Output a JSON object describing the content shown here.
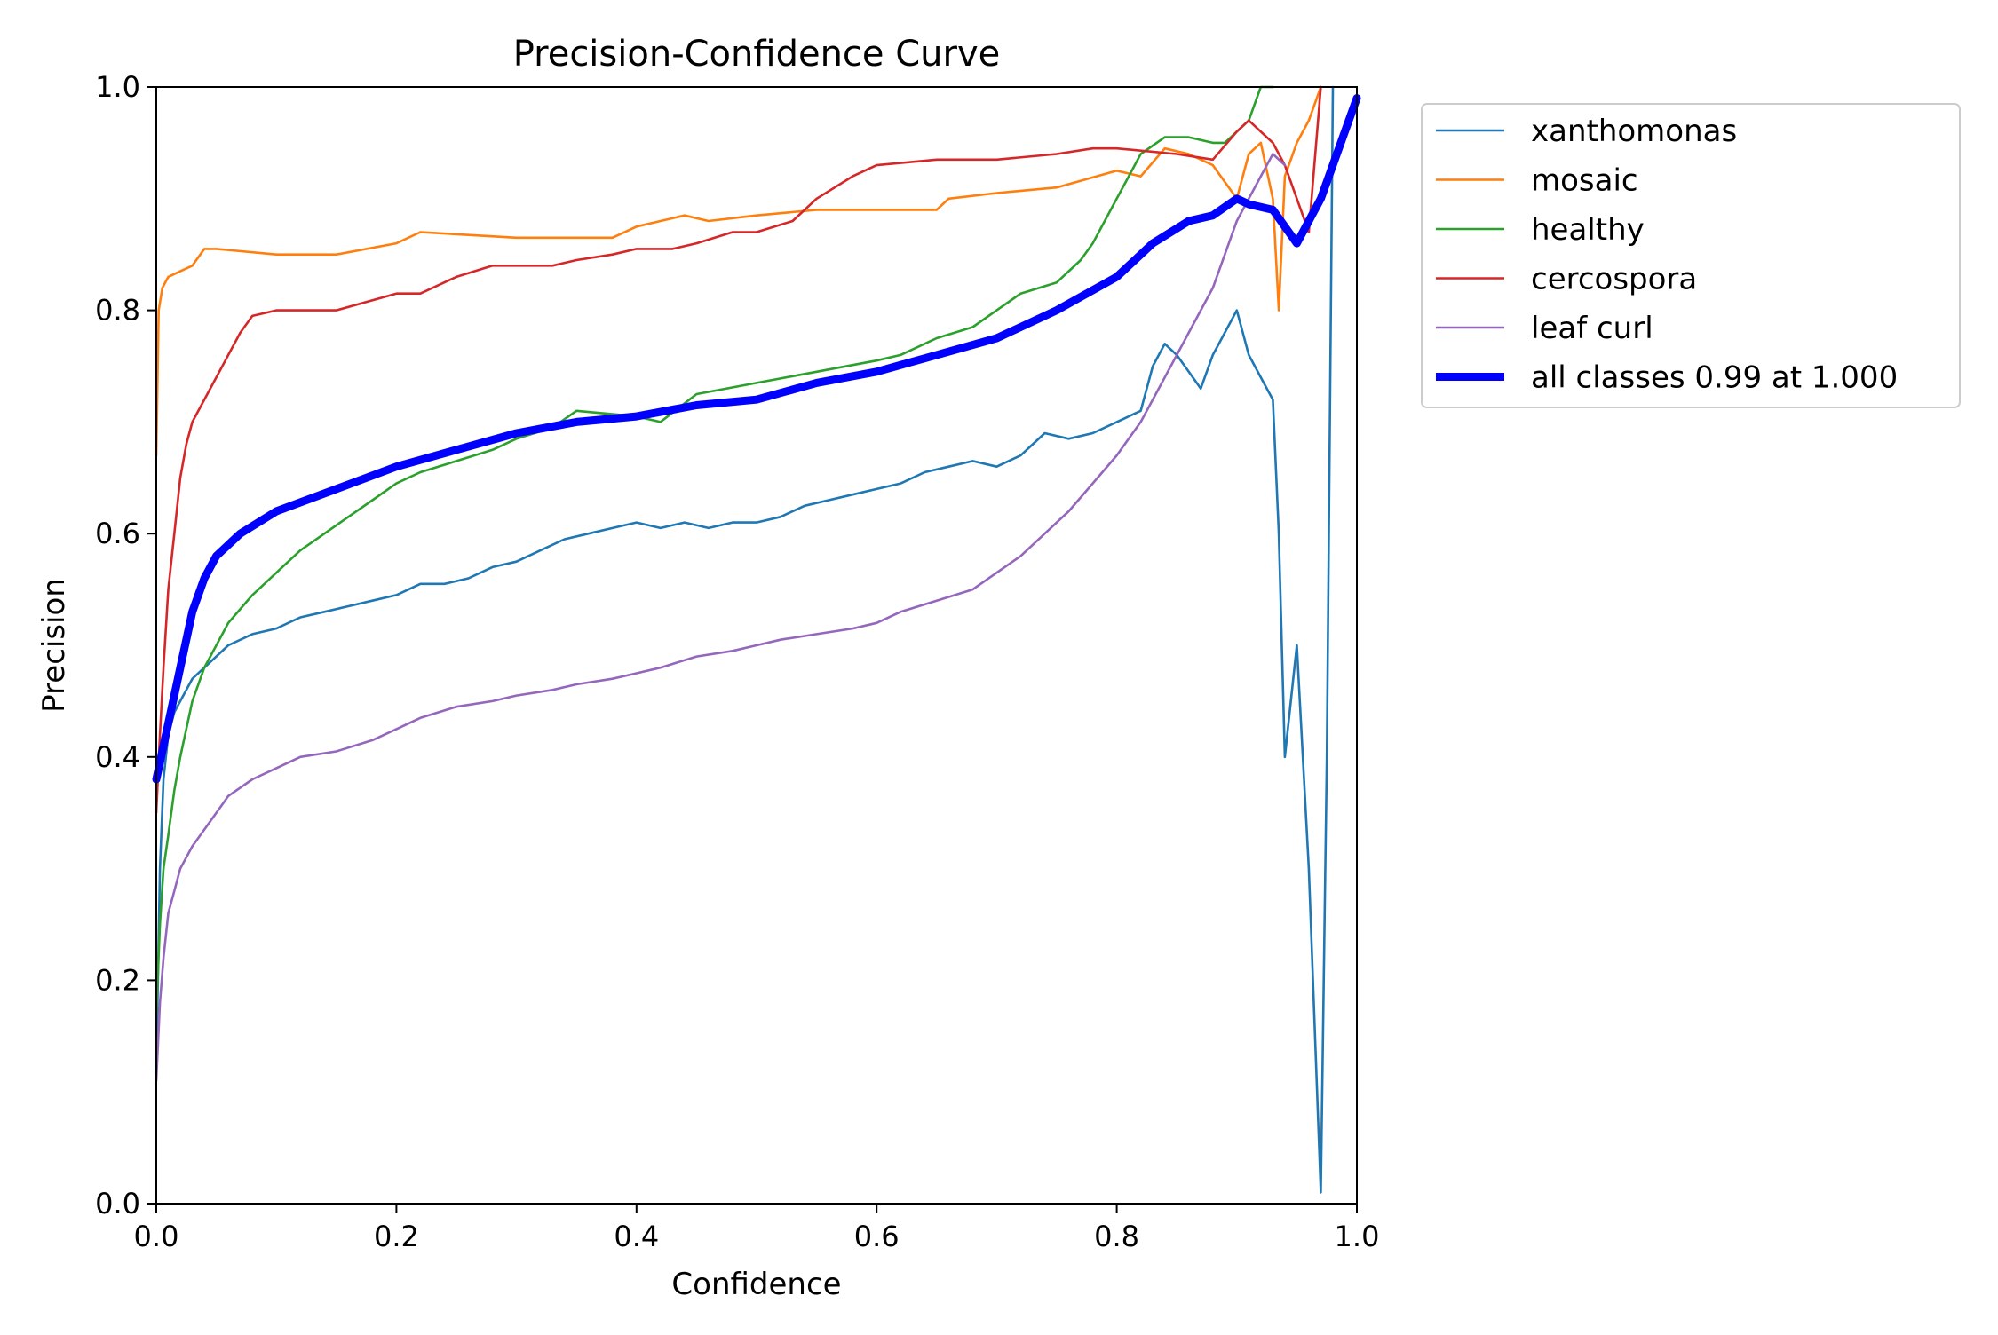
{
  "chart_data": {
    "type": "line",
    "title": "Precision-Confidence Curve",
    "xlabel": "Confidence",
    "ylabel": "Precision",
    "xlim": [
      0,
      1
    ],
    "ylim": [
      0,
      1
    ],
    "xticks": [
      "0.0",
      "0.2",
      "0.4",
      "0.6",
      "0.8",
      "1.0"
    ],
    "yticks": [
      "0.0",
      "0.2",
      "0.4",
      "0.6",
      "0.8",
      "1.0"
    ],
    "grid": false,
    "legend_position": "outside-top-right",
    "series": [
      {
        "name": "xanthomonas",
        "color": "#1f77b4",
        "x": [
          0.0,
          0.003,
          0.006,
          0.01,
          0.015,
          0.02,
          0.03,
          0.04,
          0.05,
          0.06,
          0.08,
          0.1,
          0.12,
          0.14,
          0.16,
          0.18,
          0.2,
          0.22,
          0.24,
          0.26,
          0.28,
          0.3,
          0.32,
          0.34,
          0.36,
          0.38,
          0.4,
          0.42,
          0.44,
          0.46,
          0.48,
          0.5,
          0.52,
          0.54,
          0.56,
          0.58,
          0.6,
          0.62,
          0.64,
          0.66,
          0.68,
          0.7,
          0.72,
          0.74,
          0.76,
          0.78,
          0.8,
          0.82,
          0.83,
          0.84,
          0.85,
          0.86,
          0.87,
          0.88,
          0.89,
          0.9,
          0.91,
          0.92,
          0.93,
          0.935,
          0.94,
          0.95,
          0.96,
          0.97,
          0.975,
          0.98
        ],
        "y": [
          0.12,
          0.3,
          0.38,
          0.42,
          0.44,
          0.45,
          0.47,
          0.48,
          0.49,
          0.5,
          0.51,
          0.515,
          0.525,
          0.53,
          0.535,
          0.54,
          0.545,
          0.555,
          0.555,
          0.56,
          0.57,
          0.575,
          0.585,
          0.595,
          0.6,
          0.605,
          0.61,
          0.605,
          0.61,
          0.605,
          0.61,
          0.61,
          0.615,
          0.625,
          0.63,
          0.635,
          0.64,
          0.645,
          0.655,
          0.66,
          0.665,
          0.66,
          0.67,
          0.69,
          0.685,
          0.69,
          0.7,
          0.71,
          0.75,
          0.77,
          0.76,
          0.745,
          0.73,
          0.76,
          0.78,
          0.8,
          0.76,
          0.74,
          0.72,
          0.6,
          0.4,
          0.5,
          0.3,
          0.01,
          0.4,
          1.0
        ]
      },
      {
        "name": "mosaic",
        "color": "#ff7f0e",
        "x": [
          0.0,
          0.002,
          0.005,
          0.01,
          0.02,
          0.03,
          0.04,
          0.05,
          0.1,
          0.15,
          0.2,
          0.22,
          0.3,
          0.35,
          0.38,
          0.4,
          0.42,
          0.44,
          0.46,
          0.5,
          0.55,
          0.6,
          0.65,
          0.66,
          0.7,
          0.75,
          0.8,
          0.82,
          0.84,
          0.86,
          0.88,
          0.9,
          0.91,
          0.92,
          0.93,
          0.935,
          0.94,
          0.95,
          0.96,
          0.97
        ],
        "y": [
          0.67,
          0.8,
          0.82,
          0.83,
          0.835,
          0.84,
          0.855,
          0.855,
          0.85,
          0.85,
          0.86,
          0.87,
          0.865,
          0.865,
          0.865,
          0.875,
          0.88,
          0.885,
          0.88,
          0.885,
          0.89,
          0.89,
          0.89,
          0.9,
          0.905,
          0.91,
          0.925,
          0.92,
          0.945,
          0.94,
          0.93,
          0.9,
          0.94,
          0.95,
          0.9,
          0.8,
          0.92,
          0.95,
          0.97,
          1.0
        ]
      },
      {
        "name": "healthy",
        "color": "#2ca02c",
        "x": [
          0.0,
          0.003,
          0.006,
          0.01,
          0.015,
          0.02,
          0.03,
          0.04,
          0.05,
          0.06,
          0.08,
          0.1,
          0.12,
          0.14,
          0.16,
          0.18,
          0.2,
          0.22,
          0.25,
          0.28,
          0.3,
          0.33,
          0.35,
          0.4,
          0.42,
          0.45,
          0.5,
          0.55,
          0.6,
          0.62,
          0.65,
          0.68,
          0.7,
          0.72,
          0.75,
          0.77,
          0.78,
          0.8,
          0.82,
          0.84,
          0.86,
          0.88,
          0.89,
          0.9,
          0.91,
          0.92,
          0.93
        ],
        "y": [
          0.17,
          0.25,
          0.3,
          0.33,
          0.37,
          0.4,
          0.45,
          0.48,
          0.5,
          0.52,
          0.545,
          0.565,
          0.585,
          0.6,
          0.615,
          0.63,
          0.645,
          0.655,
          0.665,
          0.675,
          0.685,
          0.695,
          0.71,
          0.705,
          0.7,
          0.725,
          0.735,
          0.745,
          0.755,
          0.76,
          0.775,
          0.785,
          0.8,
          0.815,
          0.825,
          0.845,
          0.86,
          0.9,
          0.94,
          0.955,
          0.955,
          0.95,
          0.95,
          0.96,
          0.97,
          1.0,
          1.0
        ]
      },
      {
        "name": "cercospora",
        "color": "#d62728",
        "x": [
          0.0,
          0.003,
          0.006,
          0.01,
          0.015,
          0.02,
          0.025,
          0.03,
          0.04,
          0.05,
          0.06,
          0.07,
          0.08,
          0.1,
          0.12,
          0.15,
          0.2,
          0.22,
          0.25,
          0.28,
          0.3,
          0.33,
          0.35,
          0.38,
          0.4,
          0.43,
          0.45,
          0.48,
          0.5,
          0.53,
          0.55,
          0.58,
          0.6,
          0.65,
          0.7,
          0.75,
          0.78,
          0.8,
          0.85,
          0.88,
          0.9,
          0.91,
          0.92,
          0.93,
          0.94,
          0.95,
          0.96,
          0.97
        ],
        "y": [
          0.35,
          0.42,
          0.48,
          0.55,
          0.6,
          0.65,
          0.68,
          0.7,
          0.72,
          0.74,
          0.76,
          0.78,
          0.795,
          0.8,
          0.8,
          0.8,
          0.815,
          0.815,
          0.83,
          0.84,
          0.84,
          0.84,
          0.845,
          0.85,
          0.855,
          0.855,
          0.86,
          0.87,
          0.87,
          0.88,
          0.9,
          0.92,
          0.93,
          0.935,
          0.935,
          0.94,
          0.945,
          0.945,
          0.94,
          0.935,
          0.96,
          0.97,
          0.96,
          0.95,
          0.93,
          0.9,
          0.87,
          1.0
        ]
      },
      {
        "name": "leaf curl",
        "color": "#9467bd",
        "x": [
          0.0,
          0.003,
          0.006,
          0.01,
          0.015,
          0.02,
          0.03,
          0.04,
          0.05,
          0.06,
          0.08,
          0.1,
          0.12,
          0.15,
          0.18,
          0.2,
          0.22,
          0.25,
          0.28,
          0.3,
          0.33,
          0.35,
          0.38,
          0.4,
          0.42,
          0.45,
          0.48,
          0.5,
          0.52,
          0.55,
          0.58,
          0.6,
          0.62,
          0.65,
          0.68,
          0.7,
          0.72,
          0.74,
          0.76,
          0.78,
          0.8,
          0.82,
          0.84,
          0.86,
          0.88,
          0.89,
          0.9,
          0.91,
          0.92,
          0.93,
          0.94
        ],
        "y": [
          0.11,
          0.18,
          0.22,
          0.26,
          0.28,
          0.3,
          0.32,
          0.335,
          0.35,
          0.365,
          0.38,
          0.39,
          0.4,
          0.405,
          0.415,
          0.425,
          0.435,
          0.445,
          0.45,
          0.455,
          0.46,
          0.465,
          0.47,
          0.475,
          0.48,
          0.49,
          0.495,
          0.5,
          0.505,
          0.51,
          0.515,
          0.52,
          0.53,
          0.54,
          0.55,
          0.565,
          0.58,
          0.6,
          0.62,
          0.645,
          0.67,
          0.7,
          0.74,
          0.78,
          0.82,
          0.85,
          0.88,
          0.9,
          0.92,
          0.94,
          0.93
        ]
      },
      {
        "name": "all classes 0.99 at 1.000",
        "color": "#0000ff",
        "thick": true,
        "x": [
          0.0,
          0.01,
          0.02,
          0.03,
          0.04,
          0.05,
          0.07,
          0.1,
          0.15,
          0.2,
          0.25,
          0.3,
          0.35,
          0.4,
          0.45,
          0.5,
          0.55,
          0.6,
          0.65,
          0.7,
          0.75,
          0.8,
          0.83,
          0.86,
          0.88,
          0.9,
          0.91,
          0.93,
          0.95,
          0.97,
          1.0
        ],
        "y": [
          0.38,
          0.43,
          0.48,
          0.53,
          0.56,
          0.58,
          0.6,
          0.62,
          0.64,
          0.66,
          0.675,
          0.69,
          0.7,
          0.705,
          0.715,
          0.72,
          0.735,
          0.745,
          0.76,
          0.775,
          0.8,
          0.83,
          0.86,
          0.88,
          0.885,
          0.9,
          0.895,
          0.89,
          0.86,
          0.9,
          0.99
        ]
      }
    ]
  }
}
